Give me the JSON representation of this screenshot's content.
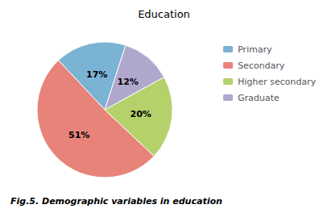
{
  "chart_data": {
    "type": "pie",
    "title": "Education",
    "annotations": [
      "Fig.5. Demographic variables in education"
    ],
    "categories": [
      "Primary",
      "Secondary",
      "Higher secondary",
      "Graduate"
    ],
    "values": [
      17,
      51,
      20,
      12
    ],
    "value_labels": [
      "17%",
      "51%",
      "20%",
      "12%"
    ],
    "colors": [
      "#7ab3d4",
      "#e8837a",
      "#b5d16a",
      "#b0a8cc"
    ],
    "data_labels": true,
    "legend": "upper right"
  }
}
